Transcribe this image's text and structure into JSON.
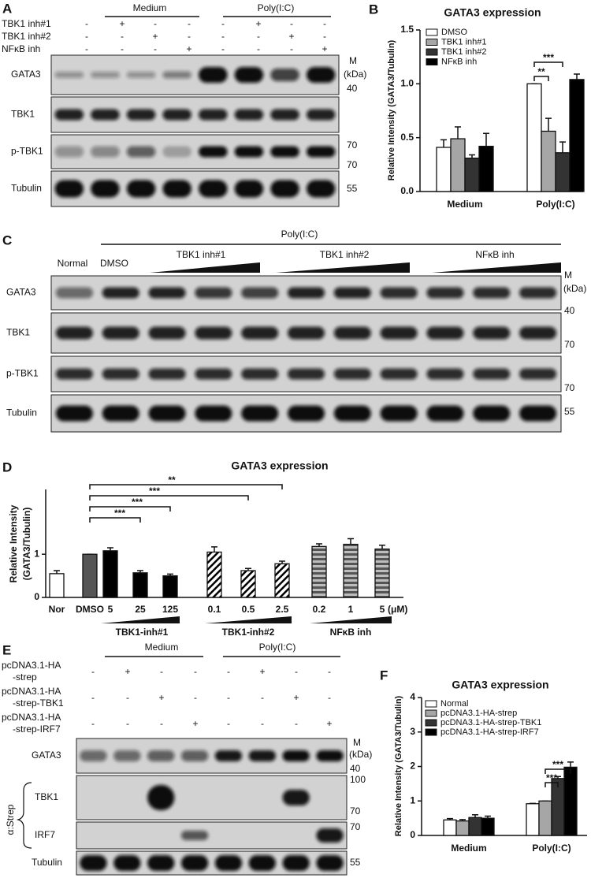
{
  "panels": {
    "A": {
      "letter": "A",
      "groups": [
        "Medium",
        "Poly(I:C)"
      ],
      "rows": [
        {
          "label": "TBK1 inh#1",
          "signs": [
            "-",
            "+",
            "-",
            "-",
            "-",
            "+",
            "-",
            "-"
          ]
        },
        {
          "label": "TBK1 inh#2",
          "signs": [
            "-",
            "-",
            "+",
            "-",
            "-",
            "-",
            "+",
            "-"
          ]
        },
        {
          "label": "NFκB inh",
          "signs": [
            "-",
            "-",
            "-",
            "+",
            "-",
            "-",
            "-",
            "+"
          ]
        }
      ],
      "blots": [
        "GATA3",
        "TBK1",
        "p-TBK1",
        "Tubulin"
      ],
      "marker_title": [
        "M",
        "(kDa)"
      ],
      "markers": [
        "40",
        "70",
        "70",
        "55"
      ]
    },
    "C": {
      "letter": "C",
      "treatment": "Poly(I:C)",
      "lanes": [
        "Normal",
        "DMSO"
      ],
      "groups": [
        "TBK1 inh#1",
        "TBK1 inh#2",
        "NFκB inh"
      ],
      "blots": [
        "GATA3",
        "TBK1",
        "p-TBK1",
        "Tubulin"
      ],
      "marker_title": [
        "M",
        "(kDa)"
      ],
      "markers": [
        "40",
        "70",
        "70",
        "55"
      ]
    },
    "E": {
      "letter": "E",
      "groups": [
        "Medium",
        "Poly(I:C)"
      ],
      "rows": [
        {
          "label": [
            "pcDNA3.1-HA",
            "-strep"
          ],
          "signs": [
            "-",
            "+",
            "-",
            "-",
            "-",
            "+",
            "-",
            "-"
          ]
        },
        {
          "label": [
            "pcDNA3.1-HA",
            "-strep-TBK1"
          ],
          "signs": [
            "-",
            "-",
            "+",
            "-",
            "-",
            "-",
            "+",
            "-"
          ]
        },
        {
          "label": [
            "pcDNA3.1-HA",
            "-strep-IRF7"
          ],
          "signs": [
            "-",
            "-",
            "-",
            "+",
            "-",
            "-",
            "-",
            "+"
          ]
        }
      ],
      "blots": [
        "GATA3",
        "TBK1",
        "IRF7",
        "Tubulin"
      ],
      "strep_label": "α:Strep",
      "marker_title": [
        "M",
        "(kDa)"
      ],
      "markers": [
        "40",
        "100",
        "70",
        "70",
        "55"
      ]
    }
  },
  "chart_data": [
    {
      "panel": "B",
      "type": "bar",
      "title": "GATA3 expression",
      "ylabel": "Relative Intensity (GATA3/Tubulin)",
      "categories": [
        "Medium",
        "Poly(I:C)"
      ],
      "series": [
        {
          "name": "DMSO",
          "color": "#ffffff",
          "values": [
            0.41,
            1.0
          ],
          "error": [
            0.07,
            0.0
          ]
        },
        {
          "name": "TBK1 inh#1",
          "color": "#a6a6a6",
          "values": [
            0.49,
            0.56
          ],
          "error": [
            0.11,
            0.12
          ]
        },
        {
          "name": "TBK1 inh#2",
          "color": "#333333",
          "values": [
            0.31,
            0.36
          ],
          "error": [
            0.03,
            0.1
          ]
        },
        {
          "name": "NFκB inh",
          "color": "#000000",
          "values": [
            0.42,
            1.04
          ],
          "error": [
            0.12,
            0.05
          ]
        }
      ],
      "ylim": [
        0,
        1.5
      ],
      "yticks": [
        {
          "value": 0,
          "label": "0.0"
        },
        0.5,
        {
          "value": 1,
          "label": "1.0"
        },
        1.5
      ],
      "annotations": [
        "**",
        "***"
      ]
    },
    {
      "panel": "D",
      "type": "bar",
      "title": "GATA3 expression",
      "ylabel": [
        "Relative Intensity",
        "(GATA3/Tubulin)"
      ],
      "categories": [
        "Nor",
        "DMSO",
        "5",
        "25",
        "125",
        "0.1",
        "0.5",
        "2.5",
        "0.2",
        "1",
        "5"
      ],
      "values": [
        0.55,
        1.0,
        1.08,
        0.57,
        0.5,
        1.05,
        0.62,
        0.78,
        1.18,
        1.23,
        1.12
      ],
      "error": [
        0.07,
        0.0,
        0.07,
        0.05,
        0.04,
        0.12,
        0.05,
        0.06,
        0.06,
        0.13,
        0.09
      ],
      "colors": [
        "#ffffff",
        "#555555",
        "#000000",
        "#000000",
        "#000000",
        "#000000",
        "#000000",
        "#000000",
        "#555555",
        "#555555",
        "#555555"
      ],
      "patterns": [
        "solid",
        "solid",
        "solid",
        "solid",
        "solid",
        "diagonal",
        "diagonal",
        "diagonal",
        "horizontal",
        "horizontal",
        "horizontal"
      ],
      "groups": [
        "TBK1-inh#1",
        "TBK1-inh#2",
        "NFκB inh"
      ],
      "unit": "(μM)",
      "ylim": [
        0,
        2.5
      ],
      "yticks": [
        0,
        1
      ],
      "annotations": [
        "***",
        "***",
        "***",
        "**"
      ]
    },
    {
      "panel": "F",
      "type": "bar",
      "title": "GATA3 expression",
      "ylabel": "Relative Intensity (GATA3/Tubulin)",
      "categories": [
        "Medium",
        "Poly(I:C)"
      ],
      "series": [
        {
          "name": "Normal",
          "color": "#ffffff",
          "values": [
            0.45,
            0.92
          ],
          "error": [
            0.04,
            0.01
          ]
        },
        {
          "name": "pcDNA3.1-HA-strep",
          "color": "#a6a6a6",
          "values": [
            0.42,
            1.0
          ],
          "error": [
            0.04,
            0.0
          ]
        },
        {
          "name": "pcDNA3.1-HA-strep-TBK1",
          "color": "#333333",
          "values": [
            0.52,
            1.65
          ],
          "error": [
            0.08,
            0.06
          ]
        },
        {
          "name": "pcDNA3.1-HA-strep-IRF7",
          "color": "#000000",
          "values": [
            0.5,
            1.98
          ],
          "error": [
            0.06,
            0.15
          ]
        }
      ],
      "ylim": [
        0,
        4
      ],
      "yticks": [
        0,
        1,
        2,
        3,
        4
      ],
      "annotations": [
        "***",
        "***"
      ]
    }
  ]
}
